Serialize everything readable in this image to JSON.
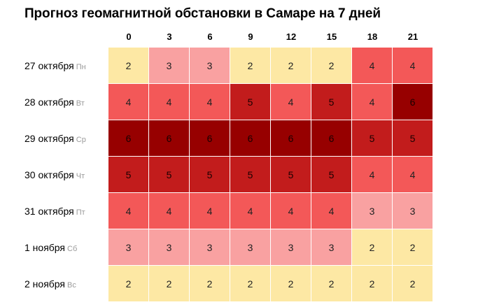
{
  "title": "Прогноз геомагнитной обстановки в Самаре на 7 дней",
  "hours": [
    "0",
    "3",
    "6",
    "9",
    "12",
    "15",
    "18",
    "21"
  ],
  "days": [
    {
      "date": "27 октября",
      "dow": "Пн",
      "values": [
        "2",
        "3",
        "3",
        "2",
        "2",
        "2",
        "4",
        "4"
      ]
    },
    {
      "date": "28 октября",
      "dow": "Вт",
      "values": [
        "4",
        "4",
        "4",
        "5",
        "4",
        "5",
        "4",
        "6"
      ]
    },
    {
      "date": "29 октября",
      "dow": "Ср",
      "values": [
        "6",
        "6",
        "6",
        "6",
        "6",
        "6",
        "5",
        "5"
      ]
    },
    {
      "date": "30 октября",
      "dow": "Чт",
      "values": [
        "5",
        "5",
        "5",
        "5",
        "5",
        "5",
        "4",
        "4"
      ]
    },
    {
      "date": "31 октября",
      "dow": "Пт",
      "values": [
        "4",
        "4",
        "4",
        "4",
        "4",
        "4",
        "3",
        "3"
      ]
    },
    {
      "date": "1 ноября",
      "dow": "Сб",
      "values": [
        "3",
        "3",
        "3",
        "3",
        "3",
        "3",
        "2",
        "2"
      ]
    },
    {
      "date": "2 ноября",
      "dow": "Вс",
      "values": [
        "2",
        "2",
        "2",
        "2",
        "2",
        "2",
        "2",
        "2"
      ]
    }
  ],
  "colors": {
    "k2": "#fde8a4",
    "k3": "#f9a1a1",
    "k4": "#f35858",
    "k5": "#c21c1c",
    "k6": "#970000"
  }
}
